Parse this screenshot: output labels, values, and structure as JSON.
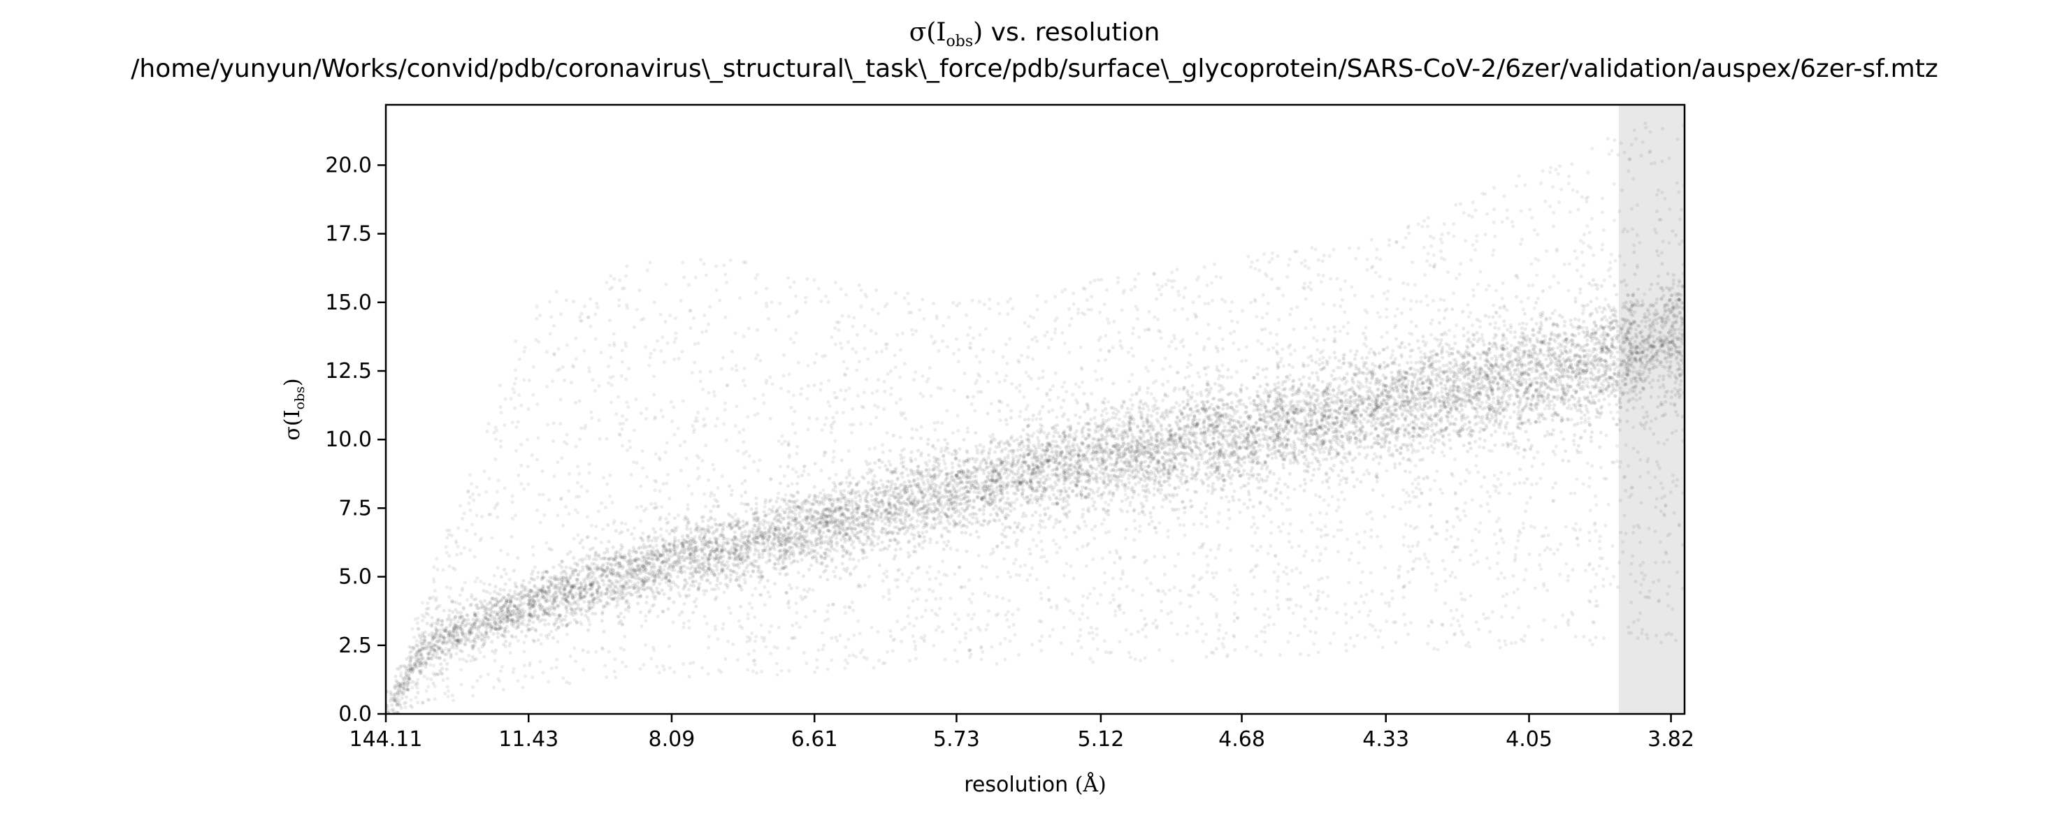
{
  "chart_data": {
    "type": "scatter",
    "title": "σ(I_obs) vs. resolution",
    "title_parts": {
      "sym": "σ(I",
      "sub": "obs",
      "close": ")",
      "rest": " vs. resolution"
    },
    "subtitle": "/home/yunyun/Works/convid/pdb/coronavirus\\_structural\\_task\\_force/pdb/surface\\_glycoprotein/SARS-CoV-2/6zer/validation/auspex/6zer-sf.mtz",
    "xlabel": "resolution (Å)",
    "xlabel_parts": {
      "text": "resolution ",
      "unit": "(Å)"
    },
    "ylabel": "σ(I_obs)",
    "ylabel_parts": {
      "sym": "σ(I",
      "sub": "obs",
      "close": ")"
    },
    "x_axis": {
      "scale": "reciprocal-squared resolution",
      "range": [
        144.11,
        3.8
      ],
      "tick_labels": [
        "144.11",
        "11.43",
        "8.09",
        "6.61",
        "5.73",
        "5.12",
        "4.68",
        "4.33",
        "4.05",
        "3.82"
      ]
    },
    "y_axis": {
      "range": [
        0,
        22.2
      ],
      "ticks": [
        "0.0",
        "2.5",
        "5.0",
        "7.5",
        "10.0",
        "12.5",
        "15.0",
        "17.5",
        "20.0"
      ]
    },
    "grid": false,
    "legend": "none",
    "shaded_region": {
      "resolution_from": 3.9,
      "resolution_to": 3.8,
      "color": "#e8e8e8"
    },
    "point_color": "#000000",
    "trend": [
      {
        "resolution": 144.11,
        "sigma": 0.0
      },
      {
        "resolution": 22.0,
        "sigma": 2.4
      },
      {
        "resolution": 11.43,
        "sigma": 4.0
      },
      {
        "resolution": 8.09,
        "sigma": 5.6
      },
      {
        "resolution": 6.61,
        "sigma": 6.8
      },
      {
        "resolution": 5.73,
        "sigma": 8.2
      },
      {
        "resolution": 5.12,
        "sigma": 9.3
      },
      {
        "resolution": 4.68,
        "sigma": 10.2
      },
      {
        "resolution": 4.33,
        "sigma": 11.2
      },
      {
        "resolution": 4.05,
        "sigma": 12.3
      },
      {
        "resolution": 3.82,
        "sigma": 13.6
      }
    ],
    "outlier_band_upper": [
      {
        "resolution": 144.11,
        "sigma": 0.5
      },
      {
        "resolution": 11.43,
        "sigma": 15.0
      },
      {
        "resolution": 8.09,
        "sigma": 17.0
      },
      {
        "resolution": 5.73,
        "sigma": 15.0
      },
      {
        "resolution": 4.33,
        "sigma": 17.5
      },
      {
        "resolution": 3.82,
        "sigma": 22.0
      }
    ],
    "outlier_band_lower": [
      {
        "resolution": 144.11,
        "sigma": 0.0
      },
      {
        "resolution": 11.43,
        "sigma": 1.0
      },
      {
        "resolution": 8.09,
        "sigma": 1.3
      },
      {
        "resolution": 5.73,
        "sigma": 1.6
      },
      {
        "resolution": 4.33,
        "sigma": 2.2
      },
      {
        "resolution": 3.82,
        "sigma": 2.6
      }
    ]
  }
}
